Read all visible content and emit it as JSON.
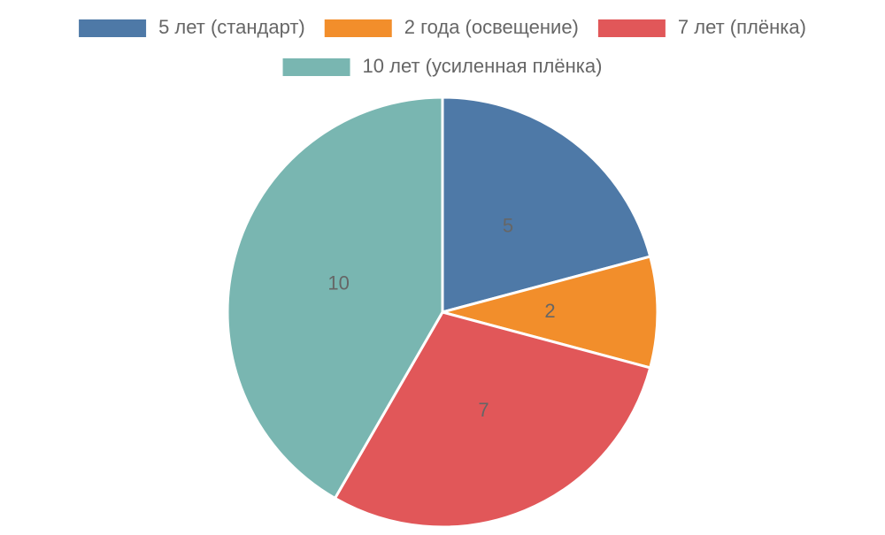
{
  "chart_data": {
    "type": "pie",
    "categories": [
      "5 лет (стандарт)",
      "2 года (освещение)",
      "7 лет (плёнка)",
      "10 лет (усиленная плёнка)"
    ],
    "values": [
      5,
      2,
      7,
      10
    ],
    "colors": [
      "#4e79a7",
      "#f28e2b",
      "#e15759",
      "#79b6b1"
    ],
    "legend": "top"
  }
}
